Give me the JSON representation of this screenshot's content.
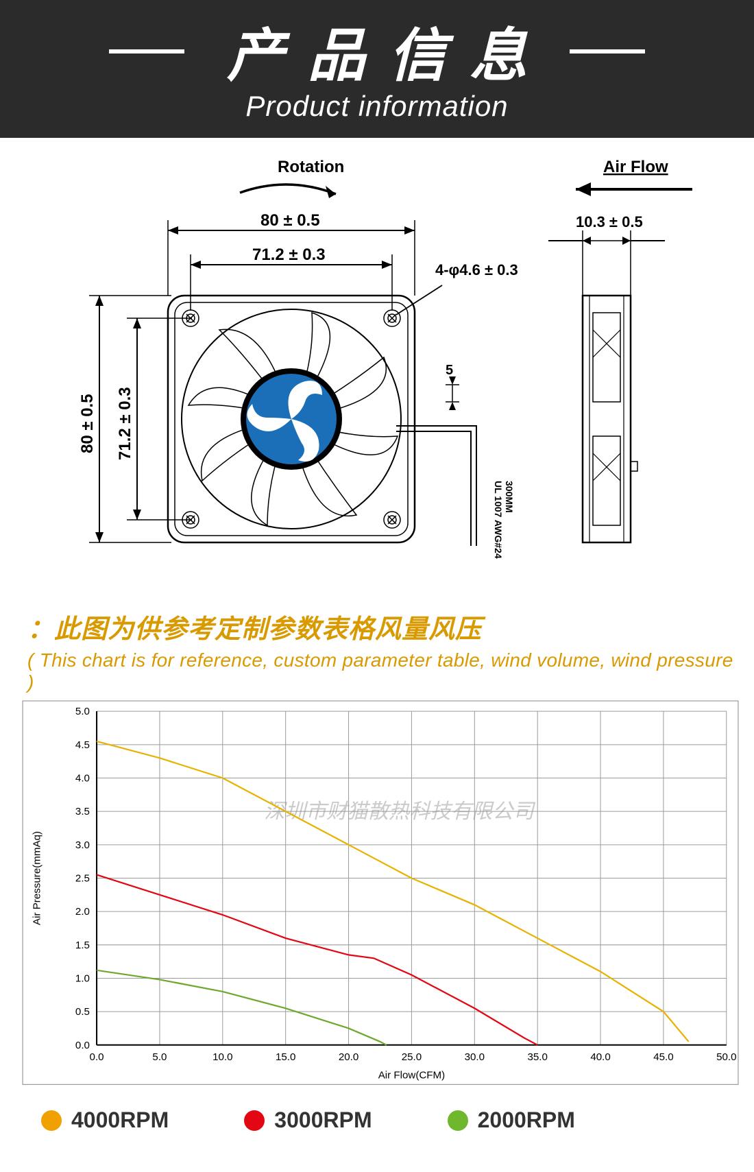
{
  "header": {
    "title_cn": "产品信息",
    "title_en": "Product information",
    "bg_color": "#2b2b2b",
    "text_color": "#ffffff",
    "cn_fontsize": 84,
    "en_fontsize": 42
  },
  "diagram": {
    "labels": {
      "rotation": "Rotation",
      "airflow": "Air Flow",
      "width_outer": "80 ± 0.5",
      "width_inner": "71.2 ± 0.3",
      "height_outer": "80 ± 0.5",
      "height_inner": "71.2 ± 0.3",
      "hole": "4-φ4.6 ± 0.3",
      "depth": "10.3 ± 0.5",
      "wire_gap": "5",
      "wire_spec": "UL 1007 AWG#24",
      "wire_len": "300MM"
    },
    "line_color": "#1a1a1a",
    "logo_bg": "#1a6fb8",
    "logo_ring": "#000000",
    "label_fontsize": 22
  },
  "chart_title": {
    "cn": "：此图为供参考定制参数表格风量风压",
    "en": "( This chart is for reference, custom parameter table, wind volume, wind pressure )",
    "color": "#d89a00",
    "cn_fontsize": 38,
    "en_fontsize": 28
  },
  "chart": {
    "type": "line",
    "xlabel": "Air Flow(CFM)",
    "ylabel": "Air Pressure(mmAq)",
    "label_fontsize": 15,
    "tick_fontsize": 15,
    "xlim": [
      0,
      50
    ],
    "ylim": [
      0,
      5
    ],
    "xtick_step": 5,
    "ytick_step": 0.5,
    "xticks": [
      0,
      5,
      10,
      15,
      20,
      25,
      30,
      35,
      40,
      45,
      50
    ],
    "yticks": [
      0,
      0.5,
      1.0,
      1.5,
      2.0,
      2.5,
      3.0,
      3.5,
      4.0,
      4.5,
      5.0
    ],
    "grid_color": "#9b9b9b",
    "axis_color": "#000000",
    "background_color": "#ffffff",
    "line_width": 2.2,
    "watermark": "深圳市财猫散热科技有限公司",
    "watermark_color": "rgba(140,140,140,0.45)",
    "series": [
      {
        "name": "4000RPM",
        "color": "#e8b200",
        "points": [
          [
            0,
            4.55
          ],
          [
            5,
            4.3
          ],
          [
            10,
            4.0
          ],
          [
            15,
            3.5
          ],
          [
            20,
            3.0
          ],
          [
            25,
            2.5
          ],
          [
            30,
            2.1
          ],
          [
            35,
            1.6
          ],
          [
            40,
            1.1
          ],
          [
            45,
            0.5
          ],
          [
            47,
            0.05
          ]
        ]
      },
      {
        "name": "3000RPM",
        "color": "#e30613",
        "points": [
          [
            0,
            2.55
          ],
          [
            5,
            2.25
          ],
          [
            10,
            1.95
          ],
          [
            15,
            1.6
          ],
          [
            20,
            1.35
          ],
          [
            22,
            1.3
          ],
          [
            25,
            1.05
          ],
          [
            30,
            0.55
          ],
          [
            34,
            0.1
          ],
          [
            35,
            0.0
          ]
        ]
      },
      {
        "name": "2000RPM",
        "color": "#6fa82e",
        "points": [
          [
            0,
            1.12
          ],
          [
            5,
            0.98
          ],
          [
            10,
            0.8
          ],
          [
            15,
            0.55
          ],
          [
            20,
            0.25
          ],
          [
            22.5,
            0.05
          ],
          [
            23,
            0.0
          ]
        ]
      }
    ]
  },
  "legend": {
    "items": [
      {
        "label": "4000RPM",
        "color": "#f0a000"
      },
      {
        "label": "3000RPM",
        "color": "#e30613"
      },
      {
        "label": "2000RPM",
        "color": "#6fb82e"
      }
    ],
    "fontsize": 32,
    "text_color": "#333333"
  }
}
